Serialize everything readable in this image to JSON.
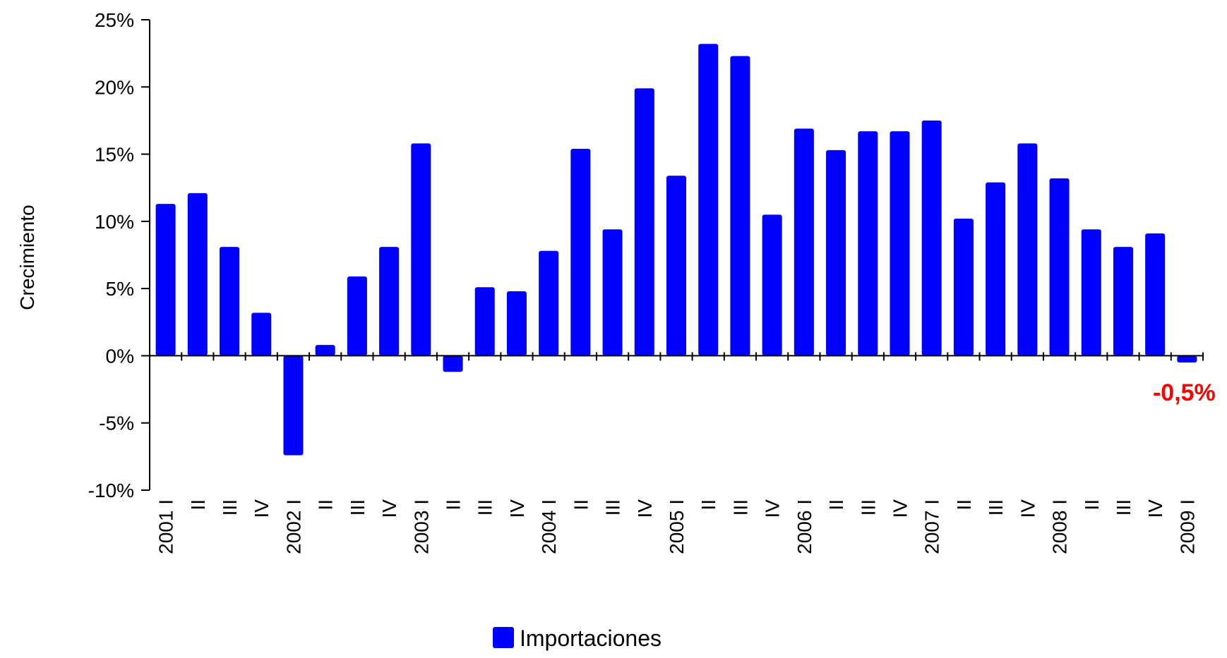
{
  "chart_data": {
    "type": "bar",
    "title": "",
    "xlabel": "",
    "ylabel": "Crecimiento",
    "ylim": [
      -10,
      25
    ],
    "yticks": [
      25,
      20,
      15,
      10,
      5,
      0,
      -5,
      -10
    ],
    "ytick_labels": [
      "25%",
      "20%",
      "15%",
      "10%",
      "5%",
      "0%",
      "-5%",
      "-10%"
    ],
    "grid": false,
    "legend_position": "bottom-center",
    "categories": [
      "2001 I",
      "II",
      "III",
      "IV",
      "2002 I",
      "II",
      "III",
      "IV",
      "2003 I",
      "II",
      "III",
      "IV",
      "2004 I",
      "II",
      "III",
      "IV",
      "2005 I",
      "II",
      "III",
      "IV",
      "2006 I",
      "II",
      "III",
      "IV",
      "2007 I",
      "II",
      "III",
      "IV",
      "2008 I",
      "II",
      "III",
      "IV",
      "2009 I"
    ],
    "series": [
      {
        "name": "Importaciones",
        "color": "#0000ff",
        "values": [
          11.3,
          12.1,
          8.1,
          3.2,
          -7.4,
          0.8,
          5.9,
          8.1,
          15.8,
          -1.2,
          5.1,
          4.8,
          7.8,
          15.4,
          9.4,
          19.9,
          13.4,
          23.2,
          22.3,
          10.5,
          16.9,
          15.3,
          16.7,
          16.7,
          17.5,
          10.2,
          12.9,
          15.8,
          13.2,
          9.4,
          8.1,
          9.1,
          -0.5
        ]
      }
    ],
    "annotations": [
      {
        "text": "-0,5%",
        "category_index": 32,
        "color": "#ff0000"
      }
    ]
  }
}
